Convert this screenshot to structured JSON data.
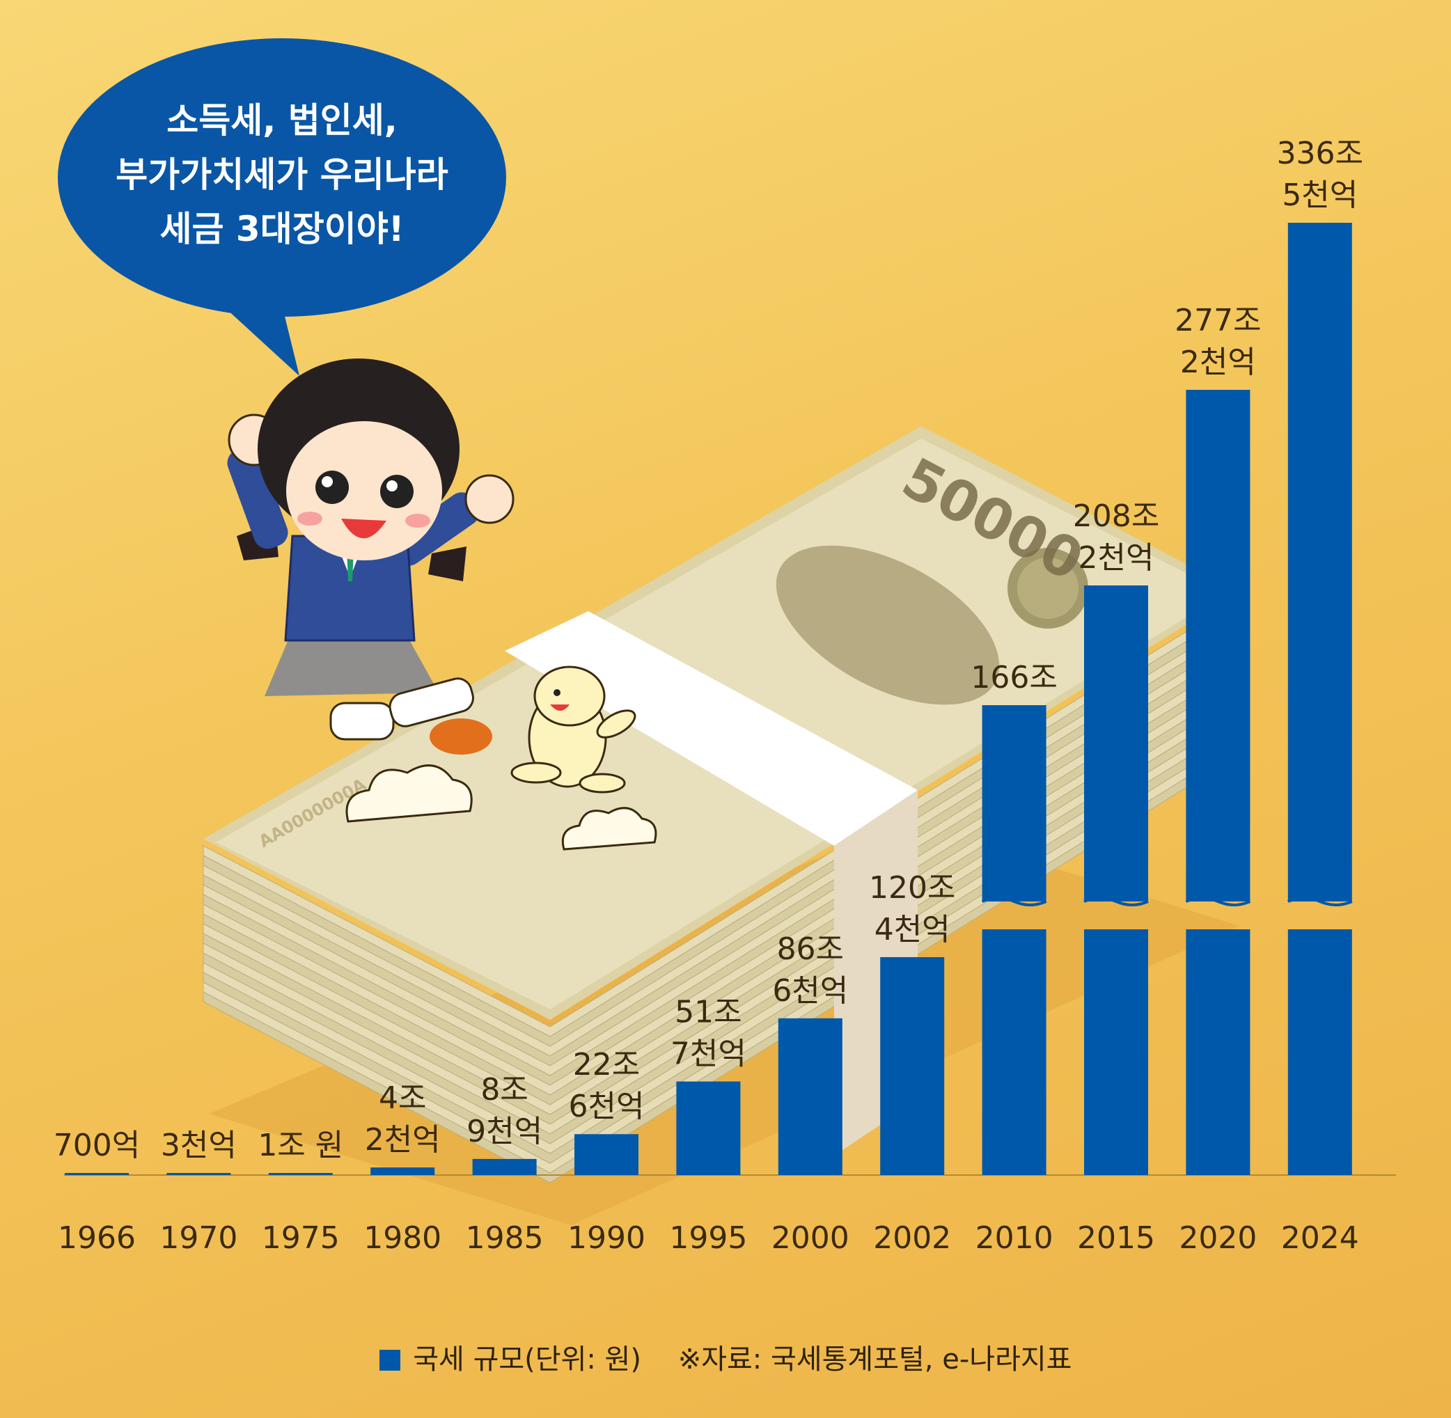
{
  "speech_bubble": {
    "lines": [
      "소득세, 법인세,",
      "부가가치세가 우리나라",
      "세금 3대장이야!"
    ]
  },
  "banknote_text": {
    "denomination": "50000",
    "serial": "AA0000000A"
  },
  "colors": {
    "bar": "#0058aa",
    "bubble": "#0a56a6",
    "background": "#f3c55a"
  },
  "chart_data": {
    "type": "bar",
    "categories": [
      "1966",
      "1970",
      "1975",
      "1980",
      "1985",
      "1990",
      "1995",
      "2000",
      "2002",
      "2010",
      "2015",
      "2020",
      "2024"
    ],
    "series": [
      {
        "name": "국세 규모(단위: 원)",
        "values": [
          0.07,
          0.3,
          1.0,
          4.2,
          8.9,
          22.6,
          51.7,
          86.6,
          120.4,
          166,
          208.2,
          277.2,
          336.5
        ]
      }
    ],
    "value_labels": [
      [
        "700억"
      ],
      [
        "3천억"
      ],
      [
        "1조 원"
      ],
      [
        "4조",
        "2천억"
      ],
      [
        "8조",
        "9천억"
      ],
      [
        "22조",
        "6천억"
      ],
      [
        "51조",
        "7천억"
      ],
      [
        "86조",
        "6천억"
      ],
      [
        "120조",
        "4천억"
      ],
      [
        "166조"
      ],
      [
        "208조",
        "2천억"
      ],
      [
        "277조",
        "2천억"
      ],
      [
        "336조",
        "5천억"
      ]
    ],
    "axis_break": [
      "2010",
      "2015",
      "2020",
      "2024"
    ],
    "unit": "조 원",
    "legend_position": "bottom"
  },
  "legend": {
    "label": "국세 규모(단위: 원)",
    "source": "※자료: 국세통계포털, e-나라지표"
  }
}
